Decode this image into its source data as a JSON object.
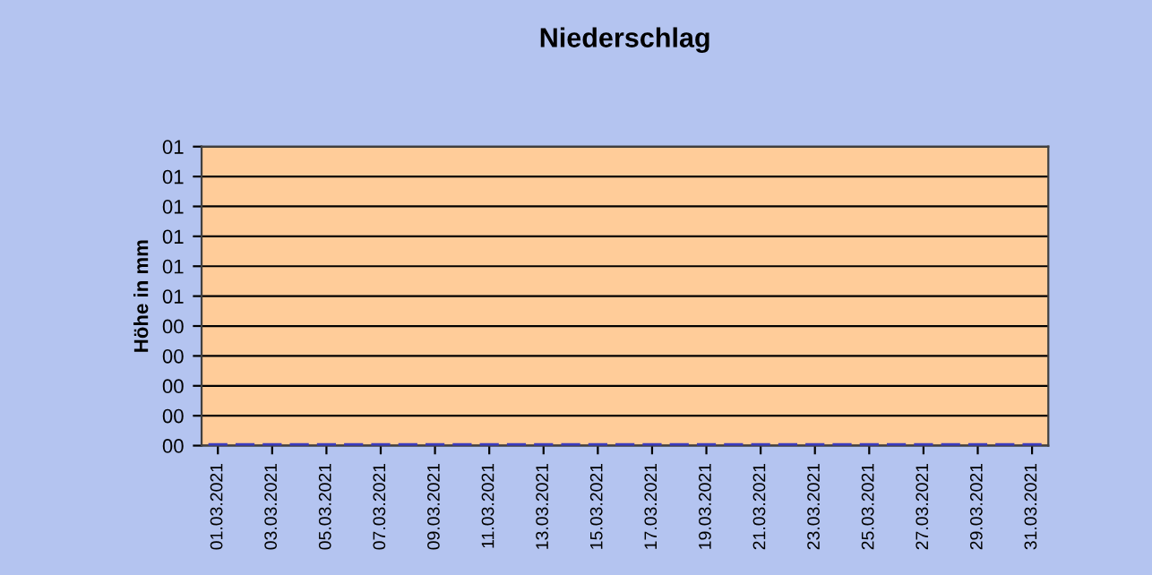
{
  "chart_data": {
    "type": "bar",
    "title": "Niederschlag",
    "ylabel": "Höhe in mm",
    "categories": [
      "01.03.2021",
      null,
      "03.03.2021",
      null,
      "05.03.2021",
      null,
      "07.03.2021",
      null,
      "09.03.2021",
      null,
      "11.03.2021",
      null,
      "13.03.2021",
      null,
      "15.03.2021",
      null,
      "17.03.2021",
      null,
      "19.03.2021",
      null,
      "21.03.2021",
      null,
      "23.03.2021",
      null,
      "25.03.2021",
      null,
      "27.03.2021",
      null,
      "29.03.2021",
      null,
      "31.03.2021"
    ],
    "values": [
      0,
      0,
      0,
      0,
      0,
      0,
      0,
      0,
      0,
      0,
      0,
      0,
      0,
      0,
      0,
      0,
      0,
      0,
      0,
      0,
      0,
      0,
      0,
      0,
      0,
      0,
      0,
      0,
      0,
      0,
      0
    ],
    "color": "#3c3cc0",
    "ylim": [
      0,
      1
    ],
    "yticks": [
      {
        "value": 0,
        "label": "00"
      },
      {
        "value": 0.1,
        "label": "00"
      },
      {
        "value": 0.2,
        "label": "00"
      },
      {
        "value": 0.3,
        "label": "00"
      },
      {
        "value": 0.4,
        "label": "00"
      },
      {
        "value": 0.5,
        "label": "01"
      },
      {
        "value": 0.6,
        "label": "01"
      },
      {
        "value": 0.7,
        "label": "01"
      },
      {
        "value": 0.8,
        "label": "01"
      },
      {
        "value": 0.9,
        "label": "01"
      },
      {
        "value": 1,
        "label": "01"
      }
    ],
    "grid": "y",
    "legend": false
  }
}
